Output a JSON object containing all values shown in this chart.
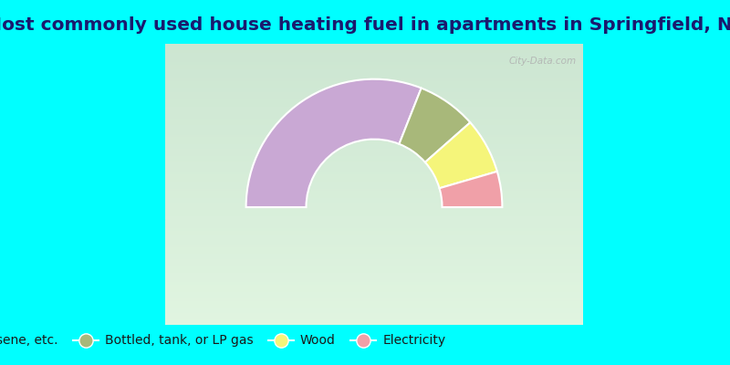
{
  "title": "Most commonly used house heating fuel in apartments in Springfield, NY",
  "title_fontsize": 14.5,
  "background_color": "#00FFFF",
  "segments": [
    {
      "label": "Fuel oil, kerosene, etc.",
      "value": 62,
      "color": "#c9a8d4"
    },
    {
      "label": "Bottled, tank, or LP gas",
      "value": 15,
      "color": "#a8b87a"
    },
    {
      "label": "Wood",
      "value": 14,
      "color": "#f5f57a"
    },
    {
      "label": "Electricity",
      "value": 9,
      "color": "#f0a0a8"
    }
  ],
  "legend_fontsize": 10,
  "watermark": "City-Data.com"
}
